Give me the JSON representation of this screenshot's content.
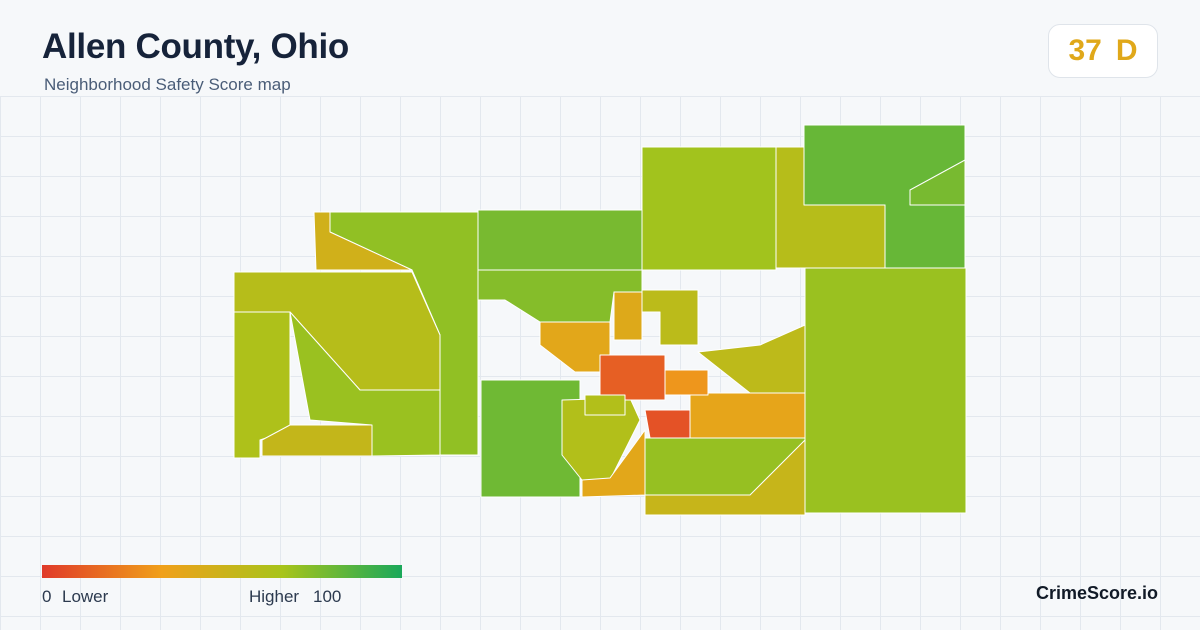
{
  "header": {
    "title": "Allen County, Ohio",
    "subtitle": "Neighborhood Safety Score map"
  },
  "score": {
    "value": "37",
    "grade": "D",
    "color": "#e0a81a"
  },
  "legend": {
    "min_value": "0",
    "min_label": "Lower",
    "max_label": "Higher",
    "max_value": "100",
    "gradient_colors": [
      "#e03a2a",
      "#f0a01a",
      "#a8c41a",
      "#1aa85a"
    ]
  },
  "brand": "CrimeScore.io",
  "map_regions": [
    {
      "id": "northwest-tract",
      "score": 72
    },
    {
      "id": "northwest-corner-tract",
      "score": 48
    },
    {
      "id": "north-central-tract",
      "score": 78
    },
    {
      "id": "north-tract",
      "score": 68
    },
    {
      "id": "northeast-corner-tract",
      "score": 82
    },
    {
      "id": "northeast-upper-tract",
      "score": 60
    },
    {
      "id": "northeast-east-tract",
      "score": 78
    },
    {
      "id": "west-tract",
      "score": 60
    },
    {
      "id": "west-lower-tract",
      "score": 64
    },
    {
      "id": "southwest-tract",
      "score": 54
    },
    {
      "id": "central-west-tract",
      "score": 70
    },
    {
      "id": "central-northwest-tract",
      "score": 75
    },
    {
      "id": "south-west-tract",
      "score": 80
    },
    {
      "id": "south-central-tract",
      "score": 62
    },
    {
      "id": "south-tract",
      "score": 40
    },
    {
      "id": "south-lower-tract",
      "score": 53
    },
    {
      "id": "east-tract",
      "score": 70
    },
    {
      "id": "east-central-tract",
      "score": 57
    },
    {
      "id": "east-orange-tract",
      "score": 38
    },
    {
      "id": "southeast-tract",
      "score": 71
    },
    {
      "id": "city-north-tract",
      "score": 42
    },
    {
      "id": "city-northeast-tract",
      "score": 58
    },
    {
      "id": "city-west-tract",
      "score": 40
    },
    {
      "id": "city-center-tract",
      "score": 12
    },
    {
      "id": "city-east-tract",
      "score": 30
    },
    {
      "id": "city-south-tract",
      "score": 8
    },
    {
      "id": "city-southwest-tract",
      "score": 62
    }
  ]
}
